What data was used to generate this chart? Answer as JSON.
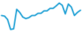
{
  "x": [
    0,
    1,
    2,
    3,
    4,
    5,
    6,
    7,
    8,
    9,
    10,
    11,
    12,
    13,
    14,
    15,
    16,
    17,
    18,
    19,
    20,
    21,
    22,
    23,
    24,
    25,
    26
  ],
  "y": [
    5.5,
    5.3,
    4.2,
    1.0,
    1.2,
    7.5,
    6.5,
    5.0,
    4.5,
    4.8,
    5.5,
    5.5,
    6.2,
    6.2,
    7.0,
    7.0,
    7.8,
    7.8,
    8.6,
    9.5,
    8.8,
    6.0,
    9.2,
    8.2,
    5.5,
    6.5,
    7.2
  ],
  "line_color": "#1a9ed4",
  "line_width": 1.5,
  "background_color": "#ffffff",
  "ylim": [
    0.5,
    10.5
  ]
}
